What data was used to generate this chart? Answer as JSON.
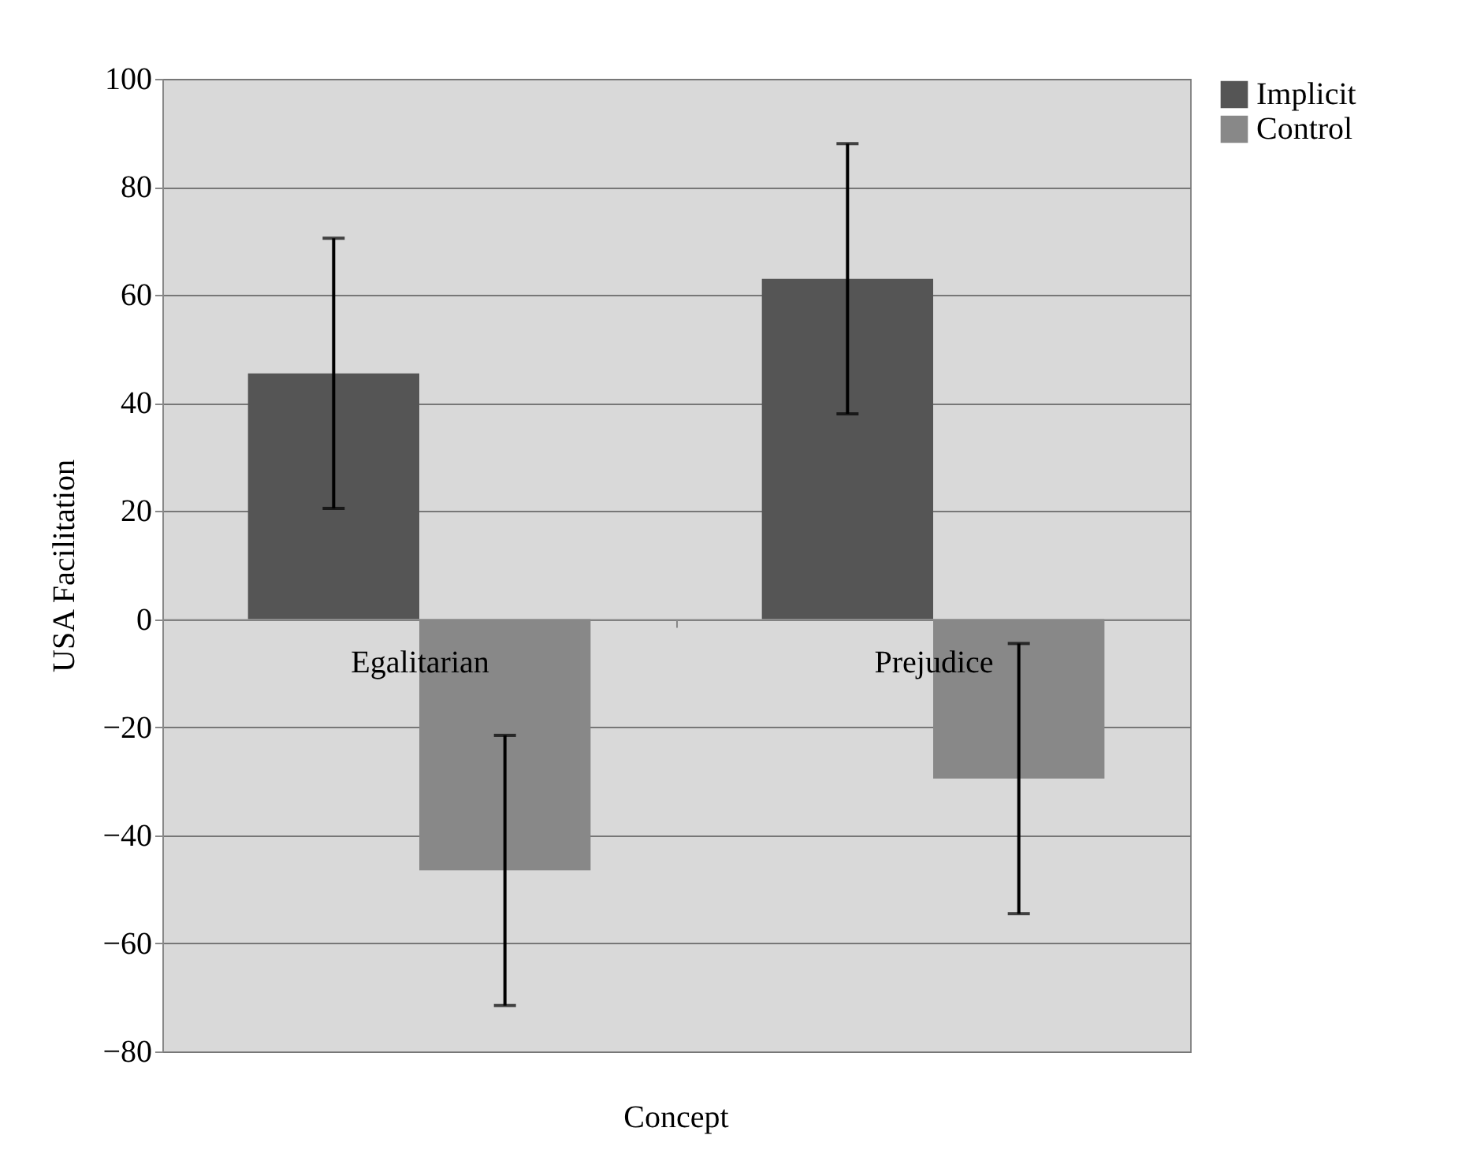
{
  "chart_data": {
    "type": "bar",
    "xlabel": "Concept",
    "ylabel": "USA Facilitation",
    "categories": [
      "Egalitarian",
      "Prejudice"
    ],
    "series": [
      {
        "name": "Implicit",
        "color": "#555555",
        "values": [
          45.5,
          63
        ],
        "errors": [
          25,
          25
        ]
      },
      {
        "name": "Control",
        "color": "#888888",
        "values": [
          -46.5,
          -29.5
        ],
        "errors": [
          25,
          25
        ]
      }
    ],
    "ylim": [
      -80,
      100
    ],
    "yticks": [
      -80,
      -60,
      -40,
      -20,
      0,
      20,
      40,
      60,
      80,
      100
    ],
    "grid": "y",
    "legend": "right"
  }
}
